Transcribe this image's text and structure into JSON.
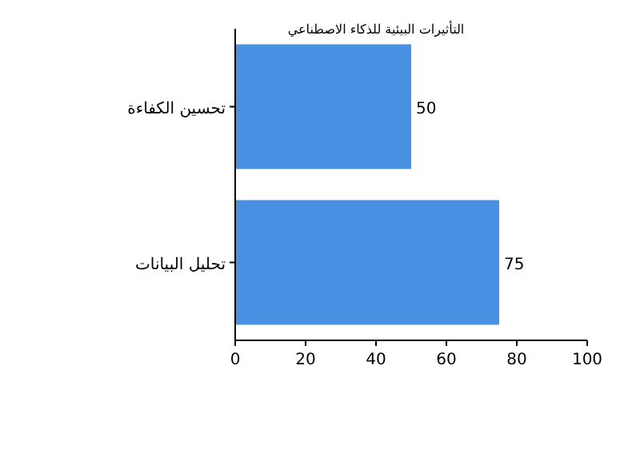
{
  "chart_data": {
    "type": "bar",
    "orientation": "horizontal",
    "title": "التأثيرات البيئية للذكاء الاصطناعي",
    "categories": [
      "تحسين الكفاءة",
      "تحليل البيانات"
    ],
    "values": [
      50,
      75
    ],
    "color": "#4a90e2",
    "xlim": [
      0,
      100
    ],
    "xticks": [
      0,
      20,
      40,
      60,
      80,
      100
    ],
    "data_labels": true
  }
}
